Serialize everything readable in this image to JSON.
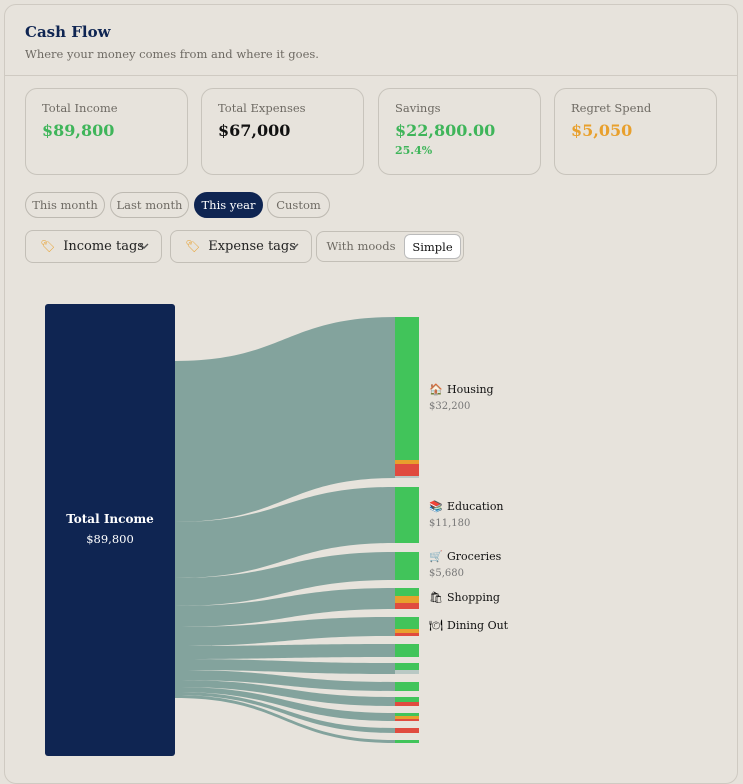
{
  "header": {
    "title": "Cash Flow",
    "subtitle": "Where your money comes from and where it goes."
  },
  "cards": [
    {
      "label": "Total Income",
      "value": "$89,800",
      "color": "#3fb55a"
    },
    {
      "label": "Total Expenses",
      "value": "$67,000",
      "color": "#111111"
    },
    {
      "label": "Savings",
      "value": "$22,800.00",
      "sub": "25.4%",
      "color": "#3fb55a"
    },
    {
      "label": "Regret Spend",
      "value": "$5,050",
      "color": "#e8a02d"
    }
  ],
  "periods": [
    "This month",
    "Last month",
    "This year",
    "Custom"
  ],
  "active_period": "This year",
  "filters": {
    "income_tags": "Income tags",
    "expense_tags": "Expense tags",
    "tag_icon": "tag-icon",
    "chevron_icon": "chevron-down-icon"
  },
  "view_toggle": {
    "with_moods": "With moods",
    "simple": "Simple",
    "selected": "Simple"
  },
  "sankey": {
    "source": {
      "label": "Total Income",
      "value": "$89,800",
      "color": "#0f2552"
    },
    "flow_color": "#83a39d",
    "mood_colors": {
      "good": "#41c45a",
      "neutral": "#e8a02d",
      "regret": "#e04b3f"
    },
    "targets": [
      {
        "label": "Housing",
        "icon": "house-icon",
        "glyph": "🏠",
        "value": "$32,200"
      },
      {
        "label": "Education",
        "icon": "books-icon",
        "glyph": "📚",
        "value": "$11,180"
      },
      {
        "label": "Groceries",
        "icon": "cart-icon",
        "glyph": "🛒",
        "value": "$5,680"
      },
      {
        "label": "Shopping",
        "icon": "shopping-bag-icon",
        "glyph": "🛍",
        "value": ""
      },
      {
        "label": "Dining Out",
        "icon": "plate-icon",
        "glyph": "🍽",
        "value": ""
      }
    ]
  }
}
